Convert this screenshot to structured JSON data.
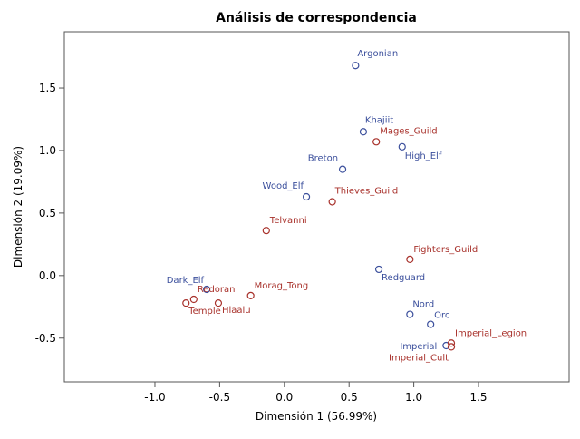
{
  "chart_data": {
    "type": "scatter",
    "title": "Análisis de correspondencia",
    "xlabel": "Dimensión 1 (56.99%)",
    "ylabel": "Dimensión 2 (19.09%)",
    "xlim": [
      -1.7,
      2.2
    ],
    "ylim": [
      -0.85,
      1.95
    ],
    "xticks": [
      -1.0,
      -0.5,
      0.0,
      0.5,
      1.0,
      1.5
    ],
    "xtick_labels": [
      "-1.0",
      "-0.5",
      "0.0",
      "0.5",
      "1.0",
      "1.5"
    ],
    "yticks": [
      -0.5,
      0.0,
      0.5,
      1.0,
      1.5
    ],
    "ytick_labels": [
      "-0.5",
      "0.0",
      "0.5",
      "1.0",
      "1.5"
    ],
    "grid": false,
    "legend": "none",
    "series": [
      {
        "color": "#3b4f9c",
        "points": [
          {
            "label": "Argonian",
            "x": 0.55,
            "y": 1.68
          },
          {
            "label": "Khajiit",
            "x": 0.61,
            "y": 1.15
          },
          {
            "label": "High_Elf",
            "x": 0.91,
            "y": 1.03
          },
          {
            "label": "Breton",
            "x": 0.45,
            "y": 0.85
          },
          {
            "label": "Wood_Elf",
            "x": 0.17,
            "y": 0.63
          },
          {
            "label": "Redguard",
            "x": 0.73,
            "y": 0.05
          },
          {
            "label": "Dark_Elf",
            "x": -0.6,
            "y": -0.11
          },
          {
            "label": "Nord",
            "x": 0.97,
            "y": -0.31
          },
          {
            "label": "Orc",
            "x": 1.13,
            "y": -0.39
          },
          {
            "label": "Imperial",
            "x": 1.25,
            "y": -0.56
          }
        ]
      },
      {
        "color": "#a8312b",
        "points": [
          {
            "label": "Mages_Guild",
            "x": 0.71,
            "y": 1.07
          },
          {
            "label": "Thieves_Guild",
            "x": 0.37,
            "y": 0.59
          },
          {
            "label": "Telvanni",
            "x": -0.14,
            "y": 0.36
          },
          {
            "label": "Fighters_Guild",
            "x": 0.97,
            "y": 0.13
          },
          {
            "label": "Morag_Tong",
            "x": -0.26,
            "y": -0.16
          },
          {
            "label": "Redoran",
            "x": -0.7,
            "y": -0.19
          },
          {
            "label": "Temple",
            "x": -0.76,
            "y": -0.22
          },
          {
            "label": "Hlaalu",
            "x": -0.51,
            "y": -0.22
          },
          {
            "label": "Imperial_Legion",
            "x": 1.29,
            "y": -0.54
          },
          {
            "label": "Imperial_Cult",
            "x": 1.29,
            "y": -0.57
          }
        ]
      }
    ]
  }
}
